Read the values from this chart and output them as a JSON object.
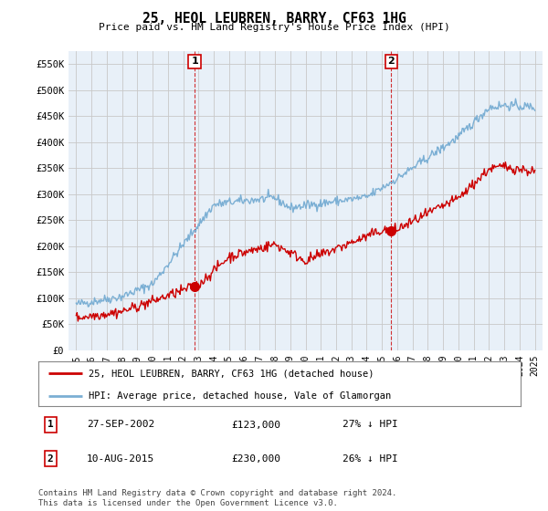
{
  "title": "25, HEOL LEUBREN, BARRY, CF63 1HG",
  "subtitle": "Price paid vs. HM Land Registry's House Price Index (HPI)",
  "legend_line1": "25, HEOL LEUBREN, BARRY, CF63 1HG (detached house)",
  "legend_line2": "HPI: Average price, detached house, Vale of Glamorgan",
  "annotation1_label": "1",
  "annotation1_date": "27-SEP-2002",
  "annotation1_price": "£123,000",
  "annotation1_hpi": "27% ↓ HPI",
  "annotation1_year": 2002.75,
  "annotation1_value": 123000,
  "annotation2_label": "2",
  "annotation2_date": "10-AUG-2015",
  "annotation2_price": "£230,000",
  "annotation2_hpi": "26% ↓ HPI",
  "annotation2_year": 2015.6,
  "annotation2_value": 230000,
  "hpi_color": "#7bafd4",
  "price_color": "#cc0000",
  "marker_color": "#cc0000",
  "vline_color": "#cc0000",
  "chart_bg_color": "#e8f0f8",
  "background_color": "#ffffff",
  "grid_color": "#c8c8c8",
  "footer_text": "Contains HM Land Registry data © Crown copyright and database right 2024.\nThis data is licensed under the Open Government Licence v3.0.",
  "ylim": [
    0,
    575000
  ],
  "yticks": [
    0,
    50000,
    100000,
    150000,
    200000,
    250000,
    300000,
    350000,
    400000,
    450000,
    500000,
    550000
  ],
  "ytick_labels": [
    "£0",
    "£50K",
    "£100K",
    "£150K",
    "£200K",
    "£250K",
    "£300K",
    "£350K",
    "£400K",
    "£450K",
    "£500K",
    "£550K"
  ],
  "xlim_start": 1994.5,
  "xlim_end": 2025.5,
  "xtick_years": [
    1995,
    1996,
    1997,
    1998,
    1999,
    2000,
    2001,
    2002,
    2003,
    2004,
    2005,
    2006,
    2007,
    2008,
    2009,
    2010,
    2011,
    2012,
    2013,
    2014,
    2015,
    2016,
    2017,
    2018,
    2019,
    2020,
    2021,
    2022,
    2023,
    2024,
    2025
  ]
}
